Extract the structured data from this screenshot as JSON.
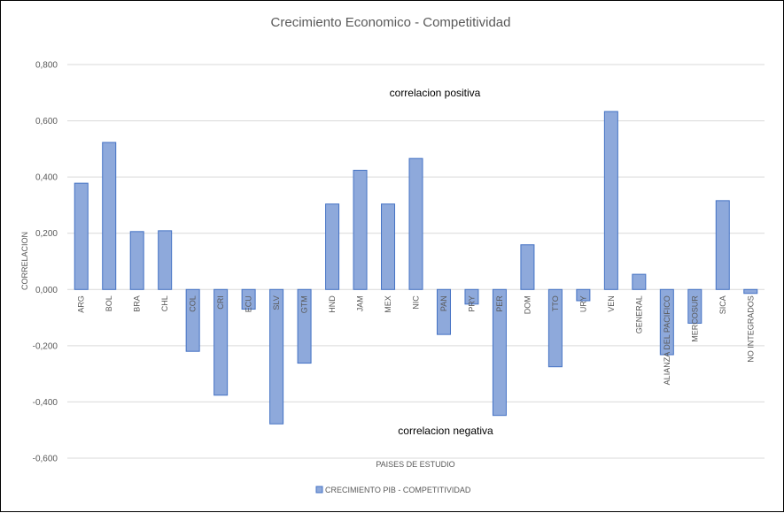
{
  "chart_data": {
    "type": "bar",
    "title": "Crecimiento  Economico  - Competitividad",
    "xlabel": "PAISES DE ESTUDIO",
    "ylabel": "CORRELACION",
    "ylim": [
      -0.6,
      0.8
    ],
    "yticks": [
      "0,800",
      "0,600",
      "0,400",
      "0,200",
      "0,000",
      "-0,200",
      "-0,400",
      "-0,600"
    ],
    "grid": true,
    "legend_position": "bottom",
    "categories": [
      "ARG",
      "BOL",
      "BRA",
      "CHL",
      "COL",
      "CRI",
      "ECU",
      "SLV",
      "GTM",
      "HND",
      "JAM",
      "MEX",
      "NIC",
      "PAN",
      "PRY",
      "PER",
      "DOM",
      "TTO",
      "URY",
      "VEN",
      "GENERAL",
      "ALIANZA DEL PACIFICO",
      "MERCOSUR",
      "SICA",
      "NO INTEGRADOS"
    ],
    "series": [
      {
        "name": "CRECIMIENTO PIB - COMPETITIVIDAD",
        "values": [
          0.378,
          0.523,
          0.206,
          0.209,
          -0.22,
          -0.376,
          -0.07,
          -0.478,
          -0.262,
          0.304,
          0.424,
          0.304,
          0.466,
          -0.16,
          -0.052,
          -0.448,
          0.159,
          -0.275,
          -0.04,
          0.633,
          0.054,
          -0.232,
          -0.12,
          0.316,
          -0.014
        ]
      }
    ],
    "annotations": [
      "correlacion positiva",
      "correlacion negativa"
    ]
  }
}
